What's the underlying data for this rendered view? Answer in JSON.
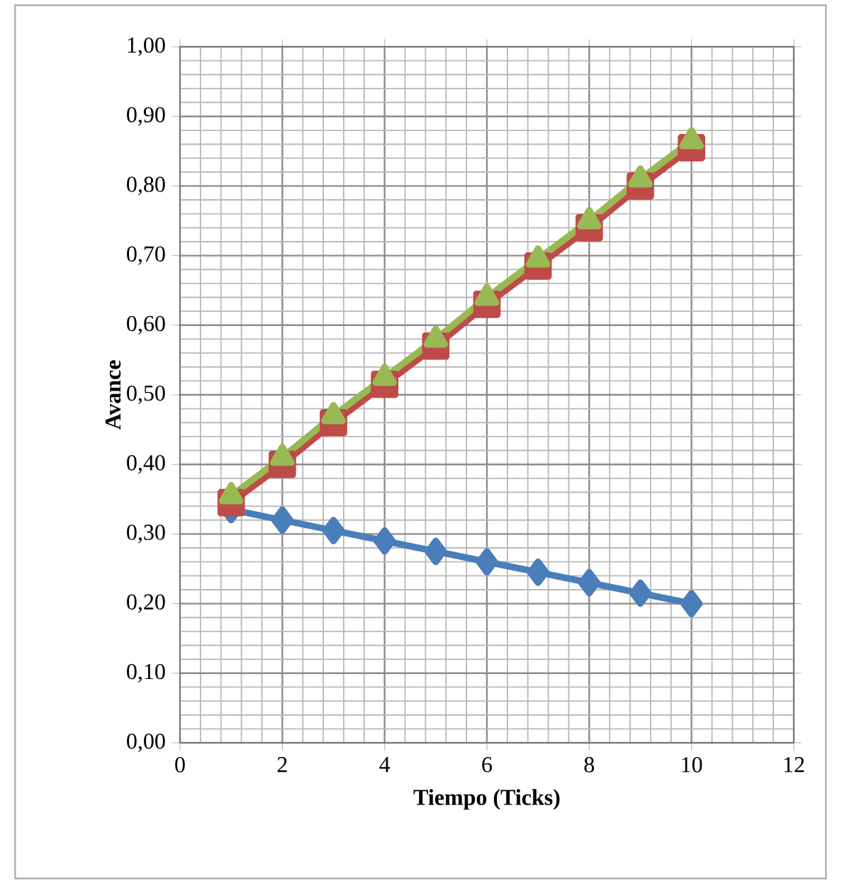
{
  "chart_data": {
    "type": "line",
    "xlabel": "Tiempo (Ticks)",
    "ylabel": "Avance",
    "xlim": [
      0,
      12
    ],
    "xticks": [
      0,
      2,
      4,
      6,
      8,
      10,
      12
    ],
    "ylim": [
      0,
      1
    ],
    "yticks": [
      {
        "value": 0,
        "label": "0,00"
      },
      {
        "value": 0.1,
        "label": "0,10"
      },
      {
        "value": 0.2,
        "label": "0,20"
      },
      {
        "value": 0.3,
        "label": "0,30"
      },
      {
        "value": 0.4,
        "label": "0,40"
      },
      {
        "value": 0.5,
        "label": "0,50"
      },
      {
        "value": 0.6,
        "label": "0,60"
      },
      {
        "value": 0.7,
        "label": "0,70"
      },
      {
        "value": 0.8,
        "label": "0,80"
      },
      {
        "value": 0.9,
        "label": "0,90"
      },
      {
        "value": 1,
        "label": "1,00"
      }
    ],
    "grid": true,
    "x": [
      1,
      2,
      3,
      4,
      5,
      6,
      7,
      8,
      9,
      10
    ],
    "series": [
      {
        "color": "#4a7ebb",
        "marker": "diamond",
        "values": [
          0.335,
          0.32,
          0.305,
          0.29,
          0.275,
          0.26,
          0.245,
          0.23,
          0.215,
          0.2
        ]
      },
      {
        "color": "#be4b48",
        "marker": "square",
        "values": [
          0.345,
          0.4,
          0.46,
          0.515,
          0.57,
          0.63,
          0.685,
          0.74,
          0.8,
          0.855
        ]
      },
      {
        "color": "#98b954",
        "marker": "triangle",
        "values": [
          0.355,
          0.41,
          0.47,
          0.525,
          0.58,
          0.64,
          0.695,
          0.75,
          0.81,
          0.865
        ]
      }
    ]
  }
}
